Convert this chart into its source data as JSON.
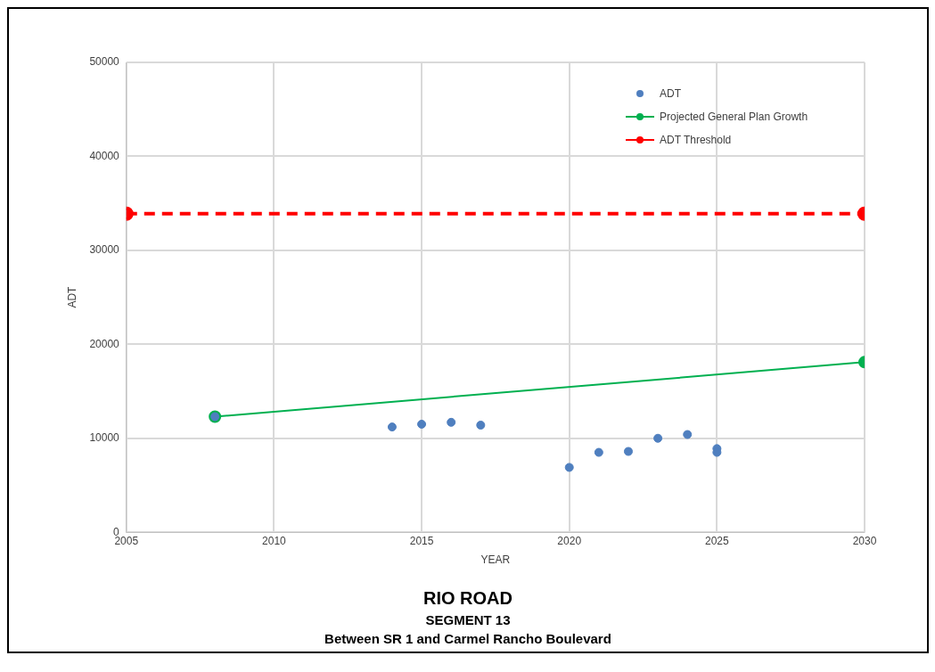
{
  "chart_data": {
    "type": "scatter",
    "title": "RIO ROAD",
    "subtitle": "SEGMENT 13",
    "annotations": [
      "Between SR 1 and Carmel Rancho Boulevard"
    ],
    "xlabel": "YEAR",
    "ylabel": "ADT",
    "series": [
      {
        "name": "ADT",
        "color": "#4f7fbf",
        "x": [
          2008,
          2014,
          2015,
          2016,
          2017,
          2020,
          2021,
          2022,
          2023,
          2024,
          2025,
          2025
        ],
        "values": [
          12300,
          11200,
          11500,
          11700,
          11400,
          6900,
          8500,
          8600,
          10000,
          10400,
          8900,
          8500
        ]
      },
      {
        "name": "Projected General Plan Growth",
        "type": "line",
        "color": "#00b050",
        "x": [
          2008,
          2030
        ],
        "values": [
          12300,
          18100
        ]
      },
      {
        "name": "ADT Threshold",
        "type": "line",
        "color": "#ff0000",
        "line_style": "dashed",
        "x": [
          2005,
          2030
        ],
        "values": [
          33900,
          33900
        ]
      }
    ],
    "xlim": [
      2005,
      2030
    ],
    "xticks": [
      2005,
      2010,
      2015,
      2020,
      2025,
      2030
    ],
    "ylim": [
      0,
      50000
    ],
    "yticks": [
      0,
      10000,
      20000,
      30000,
      40000,
      50000
    ],
    "grid": true,
    "legend": "top right",
    "marker": "circle"
  }
}
